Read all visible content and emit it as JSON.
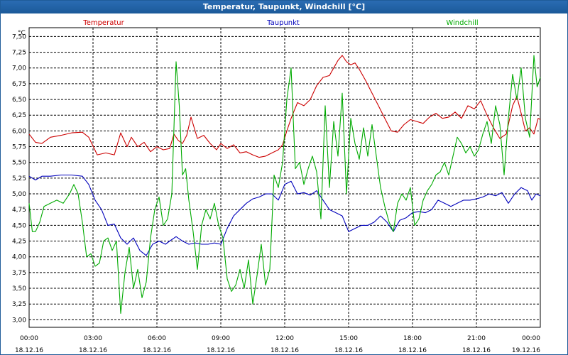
{
  "window": {
    "title": "Temperatur, Taupunkt, Windchill [°C]"
  },
  "chart_data": {
    "type": "line",
    "title": "Temperatur, Taupunkt, Windchill [°C]",
    "ylabel": "°C",
    "ylim": [
      2.88,
      7.64
    ],
    "xlim": [
      0,
      24
    ],
    "yticks": [
      {
        "v": 3.0,
        "label": "3,00"
      },
      {
        "v": 3.25,
        "label": "3,25"
      },
      {
        "v": 3.5,
        "label": "3,50"
      },
      {
        "v": 3.75,
        "label": "3,75"
      },
      {
        "v": 4.0,
        "label": "4,00"
      },
      {
        "v": 4.25,
        "label": "4,25"
      },
      {
        "v": 4.5,
        "label": "4,50"
      },
      {
        "v": 4.75,
        "label": "4,75"
      },
      {
        "v": 5.0,
        "label": "5,00"
      },
      {
        "v": 5.25,
        "label": "5,25"
      },
      {
        "v": 5.5,
        "label": "5,50"
      },
      {
        "v": 5.75,
        "label": "5,75"
      },
      {
        "v": 6.0,
        "label": "6,00"
      },
      {
        "v": 6.25,
        "label": "6,25"
      },
      {
        "v": 6.5,
        "label": "6,50"
      },
      {
        "v": 6.75,
        "label": "6,75"
      },
      {
        "v": 7.0,
        "label": "7,00"
      },
      {
        "v": 7.25,
        "label": "7,25"
      },
      {
        "v": 7.5,
        "label": "7,50"
      }
    ],
    "xticks": [
      {
        "h": 0,
        "time": "00:00",
        "date": "18.12.16"
      },
      {
        "h": 3,
        "time": "03:00",
        "date": "18.12.16"
      },
      {
        "h": 6,
        "time": "06:00",
        "date": "18.12.16"
      },
      {
        "h": 9,
        "time": "09:00",
        "date": "18.12.16"
      },
      {
        "h": 12,
        "time": "12:00",
        "date": "18.12.16"
      },
      {
        "h": 15,
        "time": "15:00",
        "date": "18.12.16"
      },
      {
        "h": 18,
        "time": "18:00",
        "date": "18.12.16"
      },
      {
        "h": 21,
        "time": "21:00",
        "date": "18.12.16"
      },
      {
        "h": 24,
        "time": "00:00",
        "date": "19.12.16"
      }
    ],
    "series": [
      {
        "name": "Temperatur",
        "color": "#cc0000",
        "x": [
          0,
          0.3,
          0.6,
          1,
          1.5,
          2,
          2.5,
          2.8,
          3.2,
          3.6,
          4,
          4.3,
          4.6,
          4.8,
          5.1,
          5.4,
          5.7,
          6,
          6.3,
          6.6,
          6.8,
          7,
          7.2,
          7.4,
          7.6,
          7.9,
          8.2,
          8.5,
          8.8,
          9,
          9.3,
          9.6,
          9.9,
          10.2,
          10.5,
          10.8,
          11.1,
          11.4,
          11.7,
          11.9,
          12.1,
          12.3,
          12.6,
          12.9,
          13.2,
          13.5,
          13.8,
          14.1,
          14.3,
          14.5,
          14.7,
          14.9,
          15.1,
          15.3,
          15.5,
          15.8,
          16.1,
          16.4,
          16.7,
          17,
          17.3,
          17.6,
          17.9,
          18.2,
          18.5,
          18.8,
          19.1,
          19.4,
          19.7,
          20,
          20.3,
          20.6,
          20.9,
          21.2,
          21.5,
          21.8,
          22.1,
          22.4,
          22.7,
          22.9,
          23.1,
          23.3,
          23.5,
          23.7,
          23.9,
          24
        ],
        "values": [
          5.95,
          5.82,
          5.8,
          5.9,
          5.93,
          5.97,
          5.98,
          5.9,
          5.62,
          5.65,
          5.62,
          5.97,
          5.75,
          5.9,
          5.75,
          5.82,
          5.67,
          5.75,
          5.7,
          5.72,
          5.95,
          5.85,
          5.8,
          5.93,
          6.22,
          5.88,
          5.93,
          5.8,
          5.7,
          5.8,
          5.72,
          5.78,
          5.65,
          5.67,
          5.62,
          5.58,
          5.6,
          5.65,
          5.7,
          5.78,
          6.0,
          6.2,
          6.45,
          6.4,
          6.5,
          6.72,
          6.85,
          6.88,
          7.0,
          7.12,
          7.2,
          7.1,
          7.05,
          7.08,
          6.98,
          6.8,
          6.6,
          6.4,
          6.2,
          6.0,
          5.98,
          6.1,
          6.18,
          6.15,
          6.12,
          6.22,
          6.28,
          6.2,
          6.22,
          6.3,
          6.2,
          6.4,
          6.35,
          6.48,
          6.25,
          6.05,
          5.88,
          5.95,
          6.4,
          6.55,
          6.28,
          6.0,
          6.05,
          5.95,
          6.2,
          6.18
        ]
      },
      {
        "name": "Taupunkt",
        "color": "#0000bb",
        "x": [
          0,
          0.3,
          0.6,
          1,
          1.5,
          2,
          2.5,
          2.8,
          3.1,
          3.4,
          3.7,
          4,
          4.3,
          4.6,
          4.9,
          5.2,
          5.5,
          5.8,
          6.1,
          6.4,
          6.6,
          6.9,
          7.2,
          7.5,
          7.8,
          8.1,
          8.4,
          8.7,
          9,
          9.3,
          9.6,
          9.9,
          10.2,
          10.5,
          10.8,
          11.1,
          11.4,
          11.7,
          12,
          12.3,
          12.6,
          12.9,
          13.2,
          13.5,
          13.8,
          14.1,
          14.4,
          14.7,
          15,
          15.3,
          15.6,
          15.9,
          16.2,
          16.5,
          16.8,
          17.1,
          17.4,
          17.7,
          18,
          18.3,
          18.6,
          18.9,
          19.2,
          19.5,
          19.8,
          20.1,
          20.4,
          20.7,
          21,
          21.3,
          21.6,
          21.9,
          22.2,
          22.5,
          22.8,
          23.1,
          23.4,
          23.6,
          23.8,
          24
        ],
        "values": [
          5.28,
          5.22,
          5.28,
          5.28,
          5.3,
          5.3,
          5.28,
          5.15,
          4.9,
          4.75,
          4.5,
          4.52,
          4.3,
          4.2,
          4.3,
          4.1,
          4.02,
          4.2,
          4.25,
          4.2,
          4.25,
          4.32,
          4.25,
          4.2,
          4.22,
          4.2,
          4.2,
          4.22,
          4.2,
          4.45,
          4.65,
          4.75,
          4.85,
          4.92,
          4.95,
          5.0,
          5.0,
          4.9,
          5.15,
          5.2,
          5.0,
          5.02,
          4.98,
          5.05,
          4.9,
          4.75,
          4.7,
          4.65,
          4.4,
          4.45,
          4.5,
          4.5,
          4.55,
          4.65,
          4.55,
          4.4,
          4.58,
          4.62,
          4.7,
          4.72,
          4.7,
          4.75,
          4.9,
          4.85,
          4.8,
          4.85,
          4.9,
          4.9,
          4.92,
          4.95,
          5.0,
          4.97,
          5.02,
          4.85,
          5.0,
          5.1,
          5.05,
          4.9,
          5.0,
          4.97
        ]
      },
      {
        "name": "Windchill",
        "color": "#00aa00",
        "x": [
          0,
          0.15,
          0.3,
          0.5,
          0.7,
          1,
          1.3,
          1.6,
          1.9,
          2.1,
          2.3,
          2.5,
          2.7,
          2.9,
          3.1,
          3.3,
          3.5,
          3.7,
          3.9,
          4.1,
          4.3,
          4.5,
          4.7,
          4.9,
          5.1,
          5.3,
          5.5,
          5.7,
          5.9,
          6.1,
          6.3,
          6.5,
          6.7,
          6.9,
          7.05,
          7.2,
          7.35,
          7.5,
          7.7,
          7.9,
          8.1,
          8.3,
          8.5,
          8.7,
          8.9,
          9.1,
          9.3,
          9.5,
          9.7,
          9.9,
          10.1,
          10.3,
          10.5,
          10.7,
          10.9,
          11.1,
          11.3,
          11.5,
          11.7,
          11.9,
          12.1,
          12.3,
          12.5,
          12.7,
          12.9,
          13.1,
          13.3,
          13.5,
          13.7,
          13.9,
          14.1,
          14.3,
          14.5,
          14.7,
          14.9,
          15.1,
          15.3,
          15.5,
          15.7,
          15.9,
          16.1,
          16.3,
          16.5,
          16.7,
          16.9,
          17.1,
          17.3,
          17.5,
          17.7,
          17.9,
          18.1,
          18.3,
          18.5,
          18.7,
          18.9,
          19.1,
          19.3,
          19.5,
          19.7,
          19.9,
          20.1,
          20.3,
          20.5,
          20.7,
          20.9,
          21.1,
          21.3,
          21.5,
          21.7,
          21.9,
          22.1,
          22.3,
          22.5,
          22.7,
          22.9,
          23.1,
          23.3,
          23.5,
          23.7,
          23.85,
          24
        ],
        "values": [
          4.85,
          4.4,
          4.4,
          4.55,
          4.8,
          4.85,
          4.9,
          4.85,
          5.0,
          5.15,
          5.0,
          4.55,
          4.0,
          4.05,
          3.85,
          3.9,
          4.25,
          4.3,
          4.1,
          4.25,
          3.1,
          3.75,
          4.15,
          3.5,
          3.8,
          3.35,
          3.6,
          4.3,
          4.75,
          4.95,
          4.5,
          4.6,
          5.0,
          7.1,
          6.4,
          5.3,
          5.4,
          4.9,
          4.4,
          3.8,
          4.5,
          4.75,
          4.6,
          4.85,
          4.5,
          4.3,
          3.65,
          3.45,
          3.55,
          3.8,
          3.5,
          3.95,
          3.25,
          3.7,
          4.2,
          3.55,
          3.8,
          5.3,
          5.1,
          5.5,
          6.5,
          7.0,
          5.4,
          5.5,
          5.15,
          5.4,
          5.6,
          5.35,
          4.6,
          6.4,
          5.1,
          6.15,
          5.6,
          6.6,
          5.0,
          6.2,
          5.8,
          5.55,
          6.05,
          5.6,
          6.1,
          5.6,
          5.1,
          4.8,
          4.55,
          4.4,
          4.85,
          5.0,
          4.9,
          5.1,
          4.5,
          4.6,
          4.9,
          5.05,
          5.15,
          5.3,
          5.35,
          5.5,
          5.3,
          5.6,
          5.9,
          5.8,
          5.65,
          5.75,
          5.6,
          5.7,
          5.95,
          6.15,
          5.8,
          6.4,
          6.1,
          5.3,
          6.2,
          6.9,
          6.5,
          7.0,
          6.2,
          5.9,
          7.2,
          6.7,
          6.85
        ]
      }
    ]
  }
}
